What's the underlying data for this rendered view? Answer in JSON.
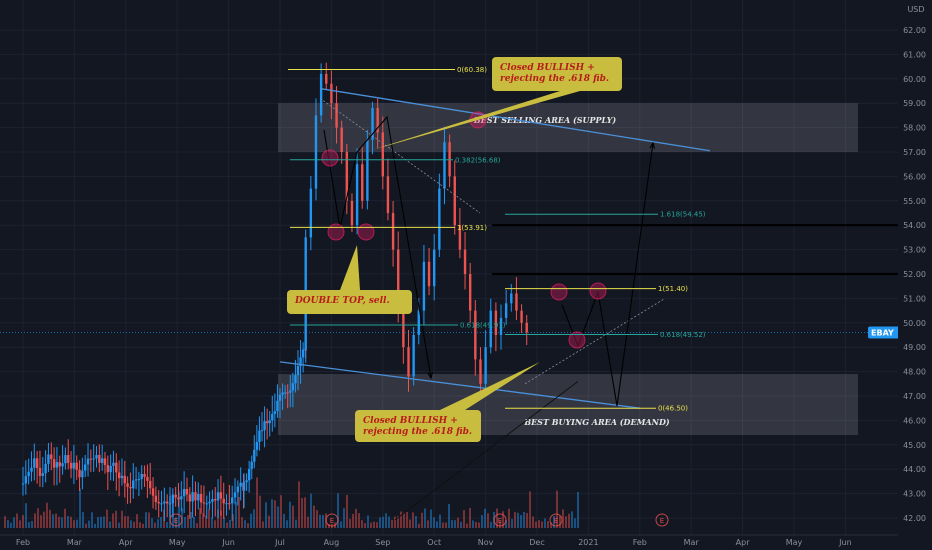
{
  "chart_data": {
    "type": "candlestick",
    "symbol": "EBAY",
    "currency_label": "USD",
    "y_ticks": [
      "62.00",
      "61.00",
      "60.00",
      "59.00",
      "58.00",
      "57.00",
      "56.00",
      "55.00",
      "54.00",
      "53.00",
      "52.00",
      "51.00",
      "50.00",
      "49.00",
      "48.00",
      "47.00",
      "46.00",
      "45.00",
      "44.00",
      "43.00",
      "42.00"
    ],
    "ylim": [
      41.7,
      62.8
    ],
    "x_ticks": [
      "Feb",
      "Mar",
      "Apr",
      "May",
      "Jun",
      "Jul",
      "Aug",
      "Sep",
      "Oct",
      "Nov",
      "Dec",
      "2021",
      "Feb",
      "Mar",
      "Apr",
      "May",
      "Jun"
    ],
    "x_tick_months": [
      0,
      1,
      2,
      3,
      4,
      5,
      6,
      7,
      8,
      9,
      10,
      11,
      12,
      13,
      14,
      15,
      16
    ],
    "last_price": {
      "label": "EBAY",
      "value": "49.60",
      "price": 49.6
    },
    "key_levels": [
      {
        "label": "54.00",
        "price": 54.0
      },
      {
        "label": "52.00",
        "price": 52.0
      }
    ],
    "zones": [
      {
        "label": "BEST SELLING AREA (SUPPLY)",
        "top": 59.0,
        "bottom": 57.0
      },
      {
        "label": "BEST BUYING AREA (DEMAND)",
        "top": 47.9,
        "bottom": 45.4
      }
    ],
    "fib_levels": [
      {
        "label": "0(60.38)",
        "price": 60.38,
        "color": "#e8e14a"
      },
      {
        "label": "0.382(56.68)",
        "price": 56.68,
        "color": "#26a69a"
      },
      {
        "label": "1(53.91)",
        "price": 53.91,
        "color": "#e8e14a"
      },
      {
        "label": "0.618(49.91)",
        "price": 49.91,
        "color": "#26a69a"
      },
      {
        "label": "1.618(54.45)",
        "price": 54.45,
        "color": "#26a69a"
      },
      {
        "label": "1(51.40)",
        "price": 51.4,
        "color": "#e8e14a"
      },
      {
        "label": "0.618(49.52)",
        "price": 49.52,
        "color": "#26a69a"
      },
      {
        "label": "0(46.50)",
        "price": 46.5,
        "color": "#e8e14a"
      }
    ],
    "candles_daily_close": [
      [
        5.5,
        53.5
      ],
      [
        5.6,
        55.5
      ],
      [
        5.7,
        58.5
      ],
      [
        5.8,
        60.2
      ],
      [
        5.9,
        59.8
      ],
      [
        6.0,
        59.0
      ],
      [
        6.1,
        58.0
      ],
      [
        6.2,
        57.0
      ],
      [
        6.3,
        55.0
      ],
      [
        6.4,
        54.0
      ],
      [
        6.5,
        56.5
      ],
      [
        6.6,
        55.0
      ],
      [
        6.7,
        57.5
      ],
      [
        6.8,
        58.8
      ],
      [
        6.9,
        57.8
      ],
      [
        7.0,
        56.0
      ],
      [
        7.1,
        54.5
      ],
      [
        7.2,
        53.0
      ],
      [
        7.3,
        50.5
      ],
      [
        7.4,
        49.0
      ],
      [
        7.5,
        47.8
      ],
      [
        7.6,
        49.5
      ],
      [
        7.7,
        50.5
      ],
      [
        7.8,
        52.5
      ],
      [
        7.9,
        51.5
      ],
      [
        8.0,
        53.0
      ],
      [
        8.1,
        55.5
      ],
      [
        8.2,
        57.4
      ],
      [
        8.3,
        56.0
      ],
      [
        8.4,
        54.0
      ],
      [
        8.5,
        53.0
      ],
      [
        8.6,
        52.0
      ],
      [
        8.7,
        50.5
      ],
      [
        8.8,
        48.5
      ],
      [
        8.9,
        47.5
      ],
      [
        9.0,
        49.0
      ],
      [
        9.1,
        50.5
      ],
      [
        9.2,
        49.5
      ],
      [
        9.3,
        50.2
      ],
      [
        9.4,
        50.8
      ],
      [
        9.5,
        51.2
      ],
      [
        9.6,
        50.5
      ],
      [
        9.7,
        50.0
      ],
      [
        9.8,
        49.6
      ]
    ],
    "annotations": [
      {
        "text_lines": [
          "Closed BULLISH +",
          "rejecting the .618 fib."
        ]
      },
      {
        "text_lines": [
          "DOUBLE TOP, sell."
        ]
      },
      {
        "text_lines": [
          "Closed BULLISH +",
          "rejecting the .618 fib."
        ]
      }
    ],
    "event_markers": [
      "E",
      "E",
      "E",
      "E",
      "E"
    ],
    "colors": {
      "background": "#131722",
      "grid": "#1e2230",
      "up": "#2196f3",
      "down": "#ef5350",
      "channel": "#4a90d9",
      "fib_gold": "#e8e14a",
      "fib_teal": "#26a69a",
      "callout_bg": "#c8bd3e",
      "zone": "rgba(200,200,210,0.18)",
      "badge_blue": "#2196f3"
    }
  }
}
